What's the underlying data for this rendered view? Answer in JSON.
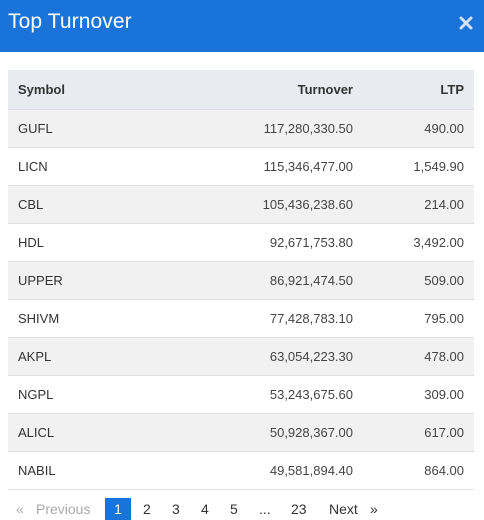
{
  "header": {
    "title": "Top Turnover",
    "close_icon": "close-icon"
  },
  "table": {
    "columns": [
      "Symbol",
      "Turnover",
      "LTP"
    ],
    "rows": [
      {
        "symbol": "GUFL",
        "turnover": "117,280,330.50",
        "ltp": "490.00"
      },
      {
        "symbol": "LICN",
        "turnover": "115,346,477.00",
        "ltp": "1,549.90"
      },
      {
        "symbol": "CBL",
        "turnover": "105,436,238.60",
        "ltp": "214.00"
      },
      {
        "symbol": "HDL",
        "turnover": "92,671,753.80",
        "ltp": "3,492.00"
      },
      {
        "symbol": "UPPER",
        "turnover": "86,921,474.50",
        "ltp": "509.00"
      },
      {
        "symbol": "SHIVM",
        "turnover": "77,428,783.10",
        "ltp": "795.00"
      },
      {
        "symbol": "AKPL",
        "turnover": "63,054,223.30",
        "ltp": "478.00"
      },
      {
        "symbol": "NGPL",
        "turnover": "53,243,675.60",
        "ltp": "309.00"
      },
      {
        "symbol": "ALICL",
        "turnover": "50,928,367.00",
        "ltp": "617.00"
      },
      {
        "symbol": "NABIL",
        "turnover": "49,581,894.40",
        "ltp": "864.00"
      }
    ]
  },
  "pagination": {
    "prev_arrow": "«",
    "previous": "Previous",
    "pages": [
      "1",
      "2",
      "3",
      "4",
      "5"
    ],
    "ellipsis": "...",
    "last": "23",
    "next": "Next",
    "next_arrow": "»",
    "active": "1"
  },
  "colors": {
    "accent": "#1a73d9",
    "header_row": "#e8ebf0",
    "stripe": "#f1f1f1"
  }
}
